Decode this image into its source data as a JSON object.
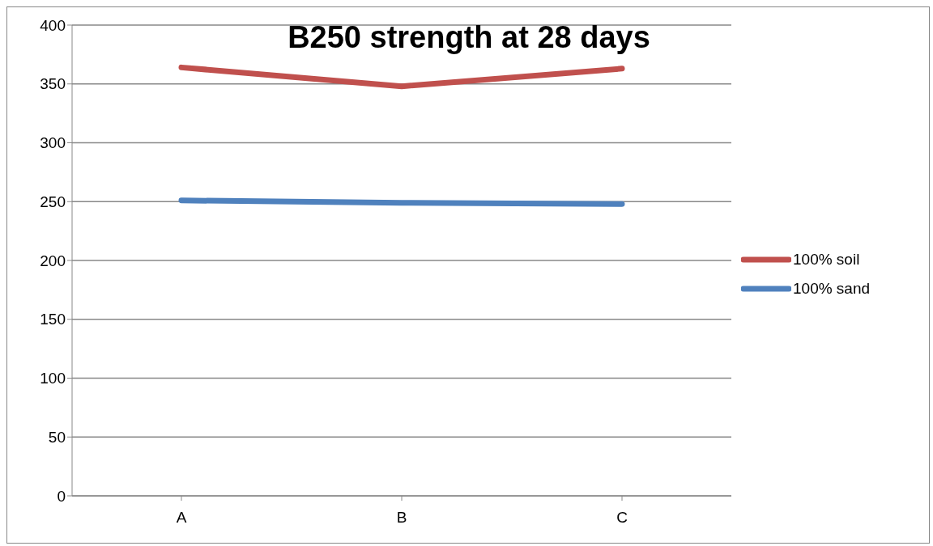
{
  "chart_data": {
    "type": "line",
    "title": "B250 strength at 28 days",
    "categories": [
      "A",
      "B",
      "C"
    ],
    "series": [
      {
        "name": "100% soil",
        "color": "#c0504d",
        "values": [
          364,
          348,
          363
        ]
      },
      {
        "name": "100% sand",
        "color": "#4f81bd",
        "values": [
          251,
          249,
          248
        ]
      }
    ],
    "ylim": [
      0,
      400
    ],
    "yticks": [
      0,
      50,
      100,
      150,
      200,
      250,
      300,
      350,
      400
    ],
    "grid": "y",
    "legend": "right",
    "marker": "none",
    "line_style": "solid"
  }
}
